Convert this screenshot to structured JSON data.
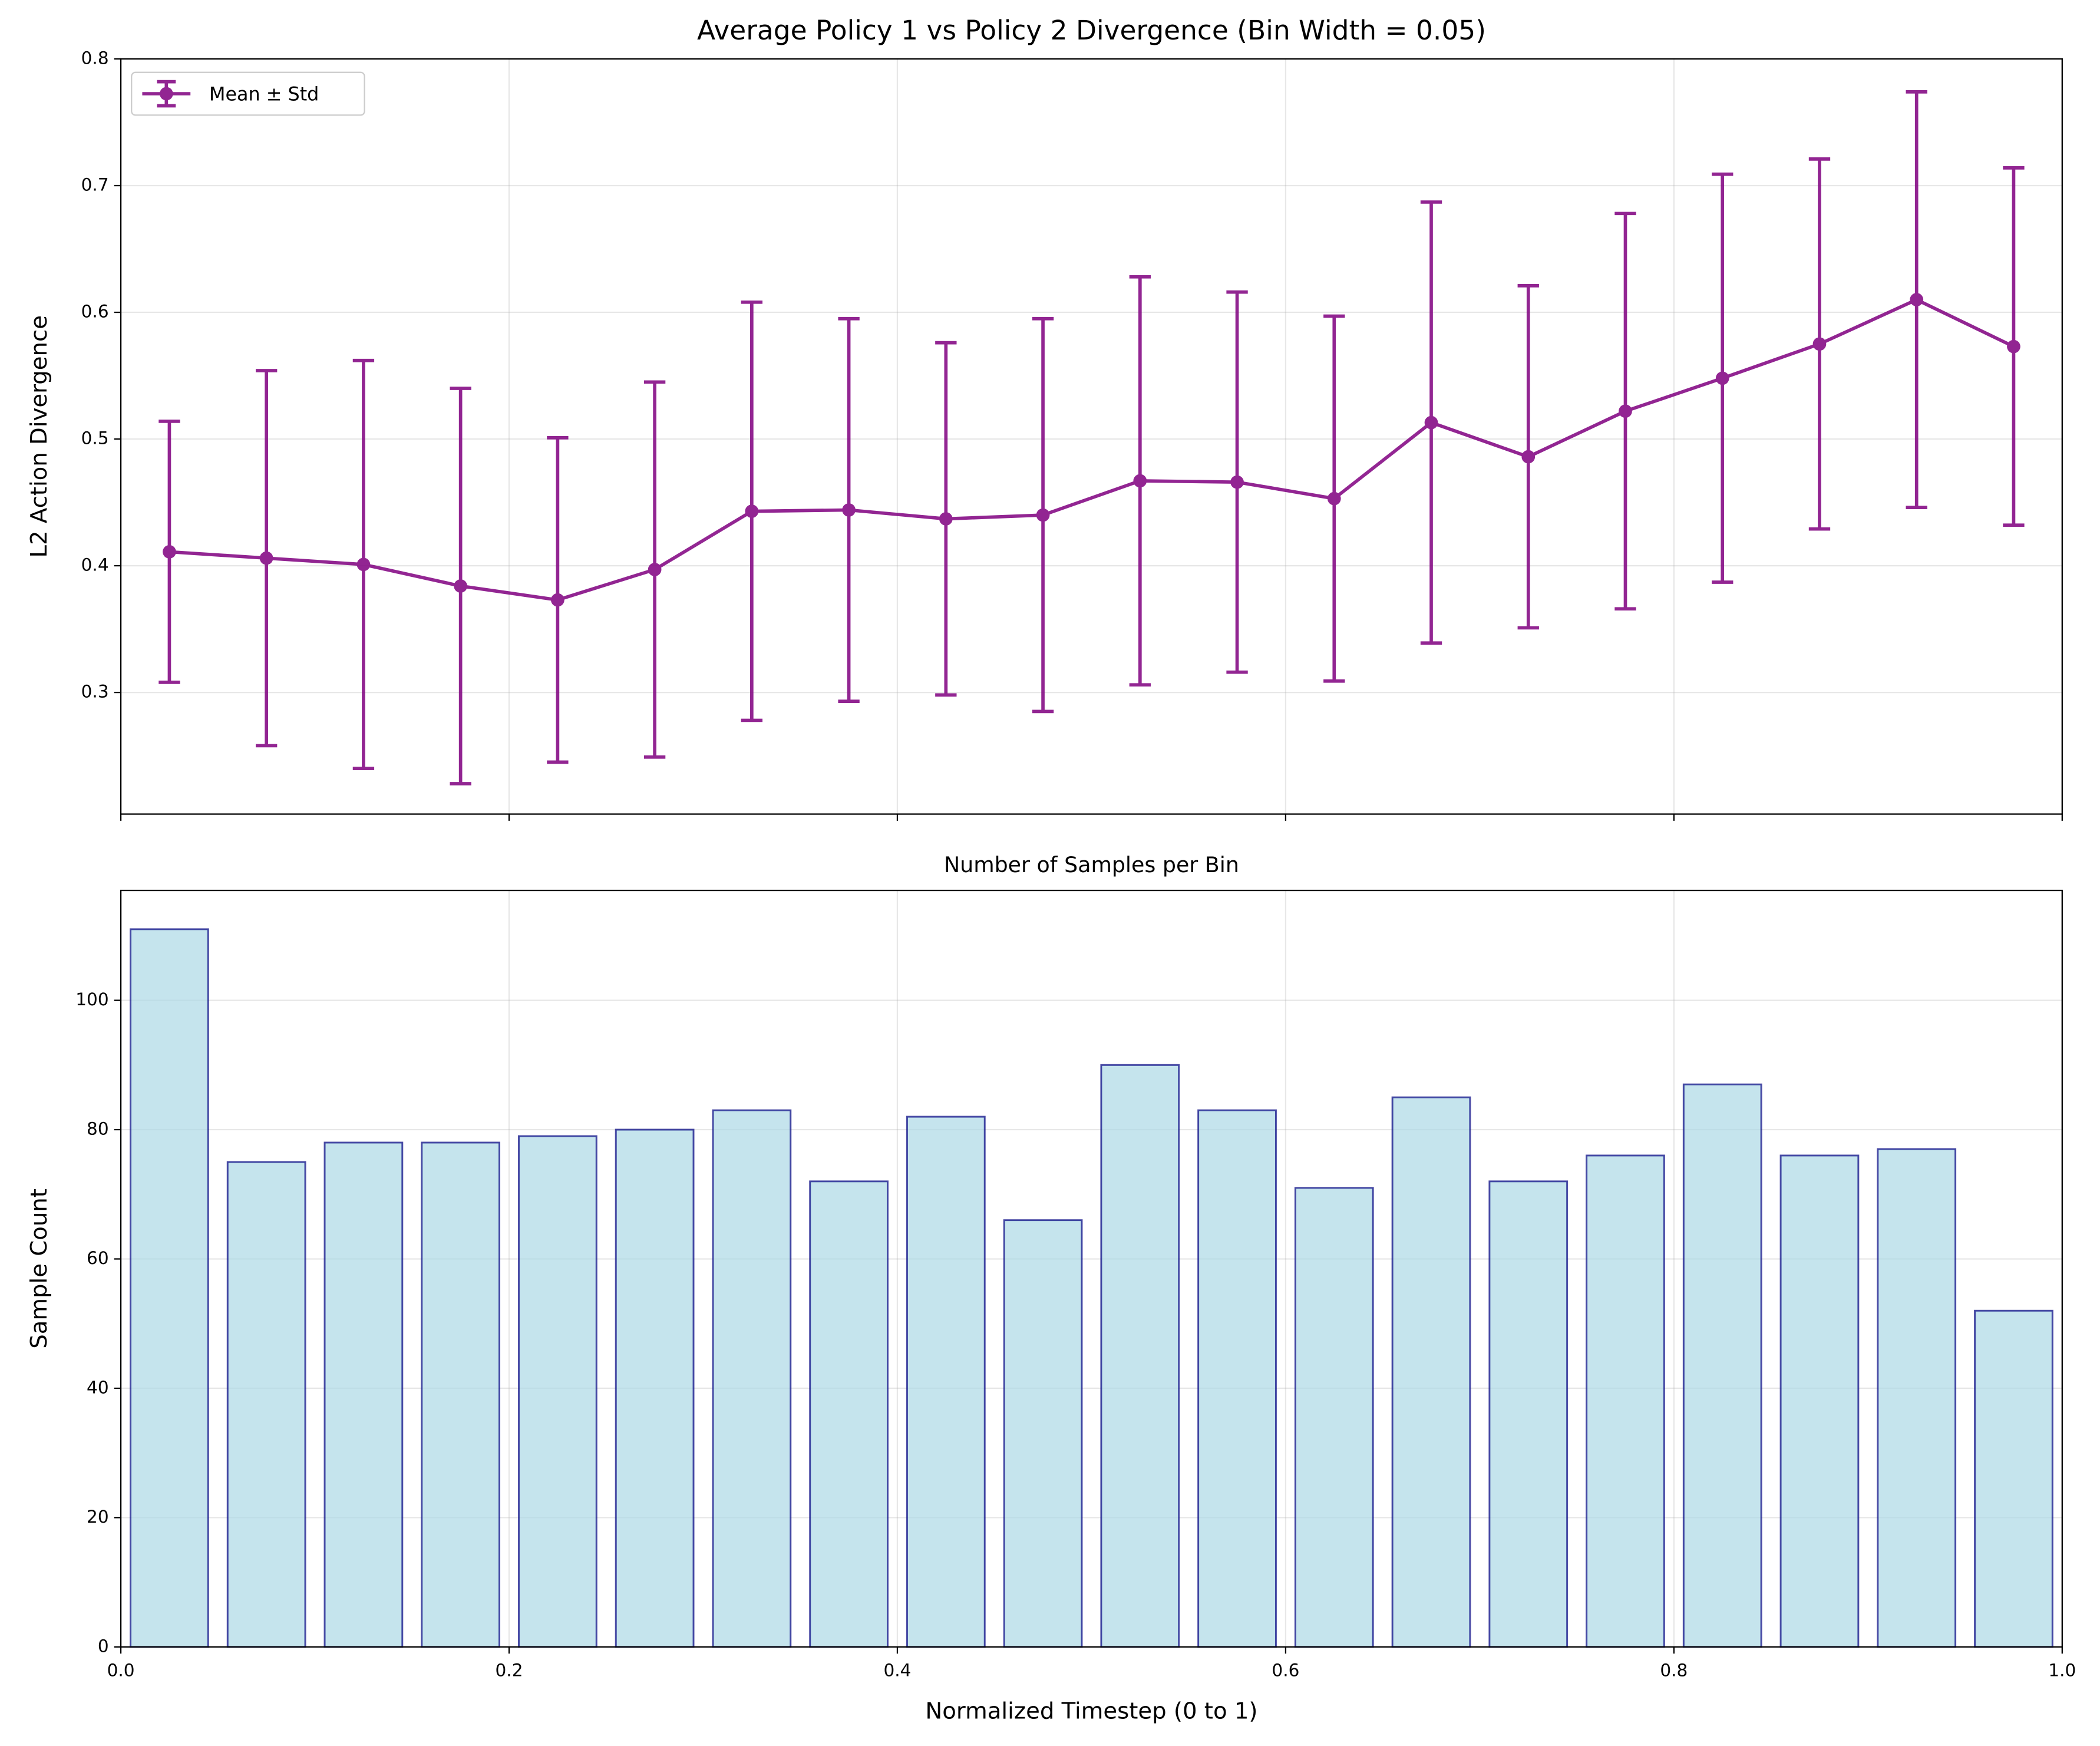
{
  "chart_data": [
    {
      "type": "errorbar-line",
      "title": "Average Policy 1 vs Policy 2 Divergence (Bin Width = 0.05)",
      "ylabel": "L2 Action Divergence",
      "x": [
        0.025,
        0.075,
        0.125,
        0.175,
        0.225,
        0.275,
        0.325,
        0.375,
        0.425,
        0.475,
        0.525,
        0.575,
        0.625,
        0.675,
        0.725,
        0.775,
        0.825,
        0.875,
        0.925,
        0.975
      ],
      "series": [
        {
          "name": "Mean ± Std",
          "color": "#800080",
          "values": [
            0.411,
            0.406,
            0.401,
            0.384,
            0.373,
            0.397,
            0.443,
            0.444,
            0.437,
            0.44,
            0.467,
            0.466,
            0.453,
            0.513,
            0.486,
            0.522,
            0.548,
            0.575,
            0.61,
            0.573
          ],
          "errors": [
            0.103,
            0.148,
            0.161,
            0.156,
            0.128,
            0.148,
            0.165,
            0.151,
            0.139,
            0.155,
            0.161,
            0.15,
            0.144,
            0.174,
            0.135,
            0.156,
            0.161,
            0.146,
            0.164,
            0.141
          ]
        }
      ],
      "xlim": [
        0,
        1
      ],
      "xticks": [
        0,
        0.2,
        0.4,
        0.6,
        0.8,
        1
      ],
      "ylim": [
        0.204,
        0.8
      ],
      "yticks": [
        0.3,
        0.4,
        0.5,
        0.6,
        0.7,
        0.8
      ],
      "grid": true,
      "legend": "upper left"
    },
    {
      "type": "histogram",
      "title": "Number of Samples per Bin",
      "xlabel": "Normalized Timestep (0 to 1)",
      "ylabel": "Sample Count",
      "bins": [
        0,
        0.05,
        0.1,
        0.15,
        0.2,
        0.25,
        0.3,
        0.35,
        0.4,
        0.45,
        0.5,
        0.55,
        0.6,
        0.65,
        0.7,
        0.75,
        0.8,
        0.85,
        0.9,
        0.95,
        1
      ],
      "values": [
        111,
        75,
        78,
        78,
        79,
        80,
        83,
        72,
        82,
        66,
        90,
        83,
        71,
        85,
        72,
        76,
        87,
        76,
        77,
        52
      ],
      "color": "#add8e6",
      "edgecolor": "#000080",
      "xlim": [
        0,
        1
      ],
      "xticks": [
        {
          "value": 0,
          "label": "0.0"
        },
        0.2,
        0.4,
        0.6,
        0.8,
        {
          "value": 1,
          "label": "1.0"
        }
      ],
      "ylim": [
        0,
        117
      ],
      "yticks": [
        0,
        20,
        40,
        60,
        80,
        100
      ],
      "grid": true
    }
  ]
}
